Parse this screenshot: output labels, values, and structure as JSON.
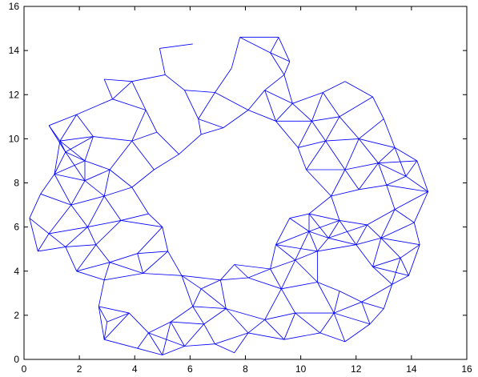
{
  "chart_data": {
    "type": "network",
    "title": "",
    "xlabel": "",
    "ylabel": "",
    "xlim": [
      0,
      16
    ],
    "ylim": [
      0,
      16
    ],
    "xticks": [
      0,
      2,
      4,
      6,
      8,
      10,
      12,
      14,
      16
    ],
    "yticks": [
      0,
      2,
      4,
      6,
      8,
      10,
      12,
      14,
      16
    ],
    "grid": false,
    "legend": "none",
    "edge_color": "#0000ff",
    "description_shape": "annulus",
    "nodes": [
      [
        7.8,
        14.6
      ],
      [
        6.1,
        14.3
      ],
      [
        4.9,
        14.1
      ],
      [
        7.5,
        13.2
      ],
      [
        3.9,
        12.6
      ],
      [
        5.1,
        12.9
      ],
      [
        2.9,
        12.7
      ],
      [
        5.8,
        12.2
      ],
      [
        6.9,
        12.1
      ],
      [
        4.4,
        11.3
      ],
      [
        6.3,
        10.9
      ],
      [
        7.2,
        10.5
      ],
      [
        8.1,
        11.3
      ],
      [
        3.2,
        11.8
      ],
      [
        1.9,
        11.1
      ],
      [
        0.9,
        10.6
      ],
      [
        1.5,
        9.4
      ],
      [
        2.5,
        10.1
      ],
      [
        3.9,
        9.9
      ],
      [
        4.8,
        10.3
      ],
      [
        5.6,
        9.3
      ],
      [
        3.1,
        8.6
      ],
      [
        2.2,
        8.1
      ],
      [
        1.1,
        8.4
      ],
      [
        0.6,
        7.5
      ],
      [
        1.7,
        7.0
      ],
      [
        2.9,
        7.4
      ],
      [
        3.9,
        7.8
      ],
      [
        4.5,
        6.6
      ],
      [
        5.0,
        6.0
      ],
      [
        3.5,
        6.3
      ],
      [
        2.3,
        6.0
      ],
      [
        0.2,
        6.4
      ],
      [
        0.9,
        5.7
      ],
      [
        0.5,
        4.9
      ],
      [
        1.5,
        5.1
      ],
      [
        2.6,
        5.2
      ],
      [
        3.1,
        4.4
      ],
      [
        4.1,
        4.8
      ],
      [
        5.2,
        4.9
      ],
      [
        1.9,
        4.0
      ],
      [
        2.9,
        3.6
      ],
      [
        4.3,
        3.9
      ],
      [
        5.7,
        3.8
      ],
      [
        6.4,
        3.2
      ],
      [
        7.1,
        3.6
      ],
      [
        8.1,
        3.7
      ],
      [
        7.6,
        4.3
      ],
      [
        8.9,
        4.1
      ],
      [
        9.8,
        4.5
      ],
      [
        10.6,
        4.9
      ],
      [
        9.3,
        3.2
      ],
      [
        10.6,
        3.5
      ],
      [
        11.4,
        3.1
      ],
      [
        12.2,
        2.6
      ],
      [
        11.2,
        2.1
      ],
      [
        12.5,
        1.6
      ],
      [
        11.6,
        0.8
      ],
      [
        10.7,
        1.2
      ],
      [
        9.8,
        2.1
      ],
      [
        8.7,
        1.8
      ],
      [
        8.1,
        1.2
      ],
      [
        7.3,
        2.3
      ],
      [
        6.5,
        1.6
      ],
      [
        6.9,
        0.7
      ],
      [
        5.8,
        0.6
      ],
      [
        5.3,
        1.7
      ],
      [
        4.5,
        1.2
      ],
      [
        3.8,
        2.1
      ],
      [
        3.0,
        1.7
      ],
      [
        2.9,
        0.9
      ],
      [
        4.1,
        0.5
      ],
      [
        5.0,
        0.2
      ],
      [
        7.6,
        0.3
      ],
      [
        9.4,
        0.9
      ],
      [
        13.0,
        2.3
      ],
      [
        13.3,
        3.4
      ],
      [
        12.6,
        4.2
      ],
      [
        13.6,
        4.6
      ],
      [
        14.3,
        5.2
      ],
      [
        14.1,
        6.2
      ],
      [
        13.4,
        6.8
      ],
      [
        12.4,
        6.1
      ],
      [
        11.4,
        6.3
      ],
      [
        10.3,
        5.8
      ],
      [
        9.6,
        6.4
      ],
      [
        10.3,
        6.6
      ],
      [
        11.1,
        7.4
      ],
      [
        12.1,
        7.7
      ],
      [
        13.1,
        7.9
      ],
      [
        14.6,
        7.6
      ],
      [
        13.8,
        8.3
      ],
      [
        12.8,
        8.9
      ],
      [
        11.6,
        8.6
      ],
      [
        10.2,
        8.6
      ],
      [
        9.9,
        9.6
      ],
      [
        10.9,
        9.9
      ],
      [
        12.1,
        10.0
      ],
      [
        13.4,
        9.6
      ],
      [
        14.2,
        9.0
      ],
      [
        13.0,
        10.9
      ],
      [
        12.6,
        11.9
      ],
      [
        11.4,
        11.0
      ],
      [
        10.4,
        10.8
      ],
      [
        9.1,
        10.8
      ],
      [
        9.7,
        11.6
      ],
      [
        10.8,
        12.1
      ],
      [
        11.6,
        12.6
      ],
      [
        9.4,
        12.9
      ],
      [
        8.7,
        12.2
      ],
      [
        8.9,
        13.9
      ],
      [
        9.2,
        14.6
      ],
      [
        9.6,
        13.5
      ],
      [
        2.2,
        9.0
      ],
      [
        1.3,
        9.9
      ],
      [
        4.7,
        8.6
      ],
      [
        6.4,
        10.2
      ],
      [
        2.7,
        2.4
      ],
      [
        6.1,
        2.4
      ],
      [
        9.1,
        5.2
      ],
      [
        12.0,
        5.2
      ],
      [
        13.9,
        3.8
      ],
      [
        12.9,
        5.5
      ],
      [
        11.0,
        5.5
      ]
    ]
  }
}
